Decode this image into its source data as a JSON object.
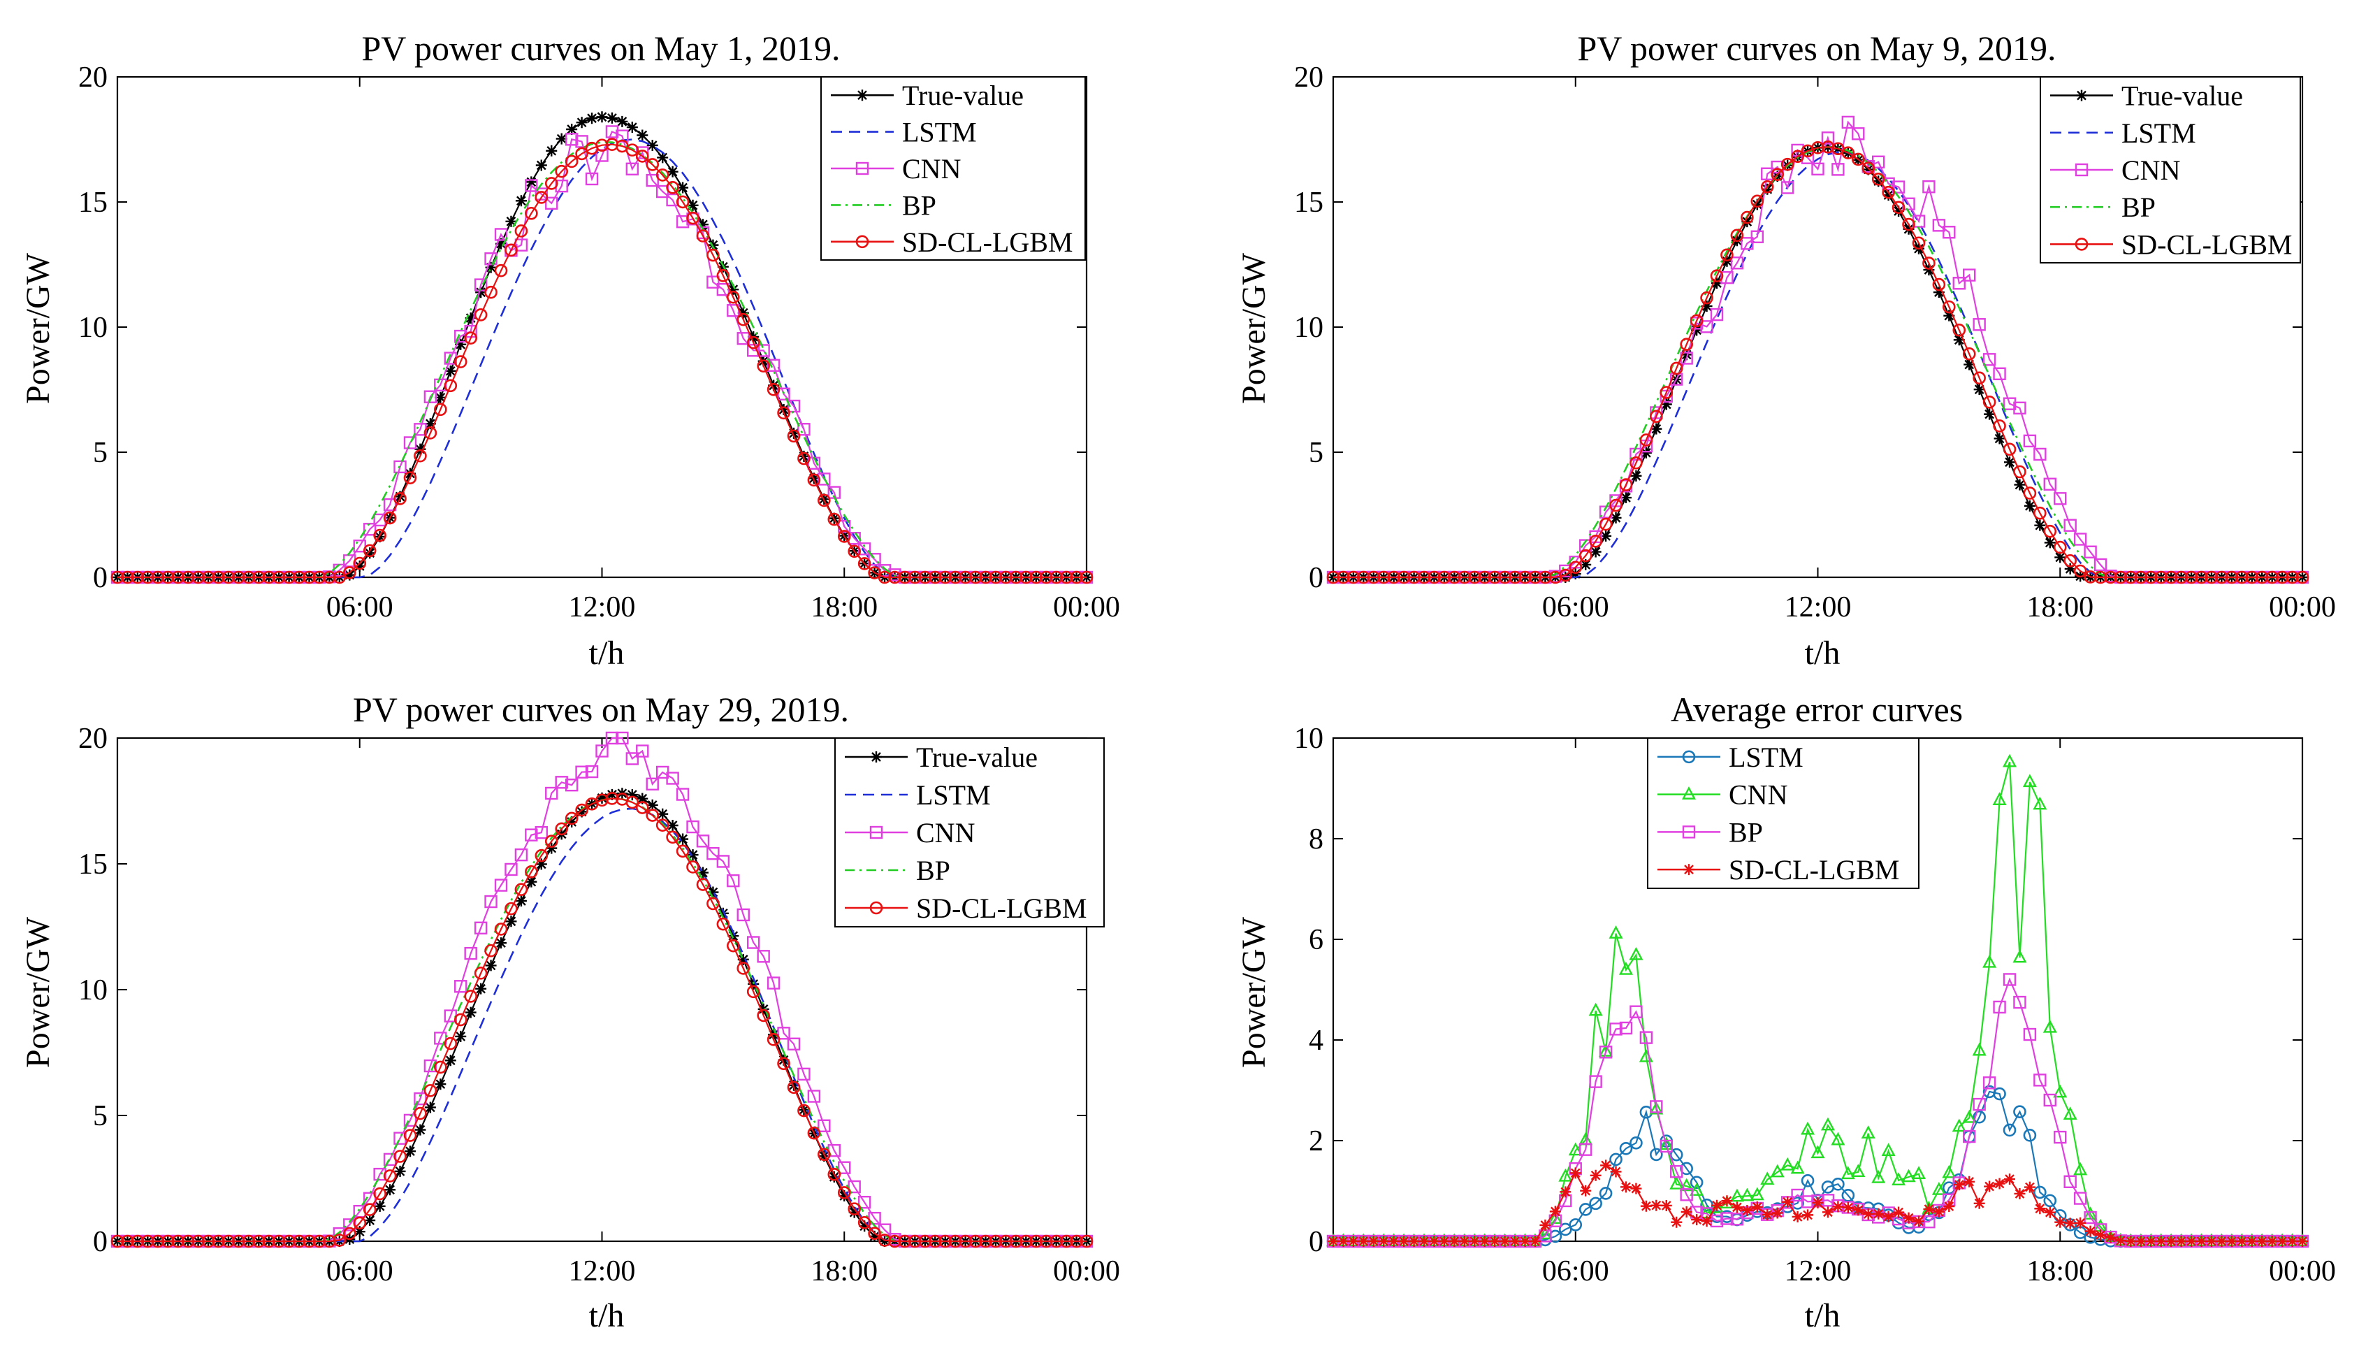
{
  "chart_data": [
    {
      "type": "line",
      "title": "PV power curves on May 1, 2019.",
      "xlabel": "t/h",
      "ylabel": "Power/GW",
      "ylim": [
        0,
        20
      ],
      "yticks": [
        "0",
        "5",
        "10",
        "15",
        "20"
      ],
      "x_ticks": [
        {
          "label": "06:00",
          "hour": 6
        },
        {
          "label": "12:00",
          "hour": 12
        },
        {
          "label": "18:00",
          "hour": 18
        },
        {
          "label": "00:00",
          "hour": 24
        }
      ],
      "legend_position": "top-right",
      "series": [
        {
          "name": "True-value",
          "color": "#000000",
          "style": "solid",
          "marker": "star",
          "sunrise": 5.6,
          "sunset": 19.0,
          "peak": 18.4,
          "peak_hour": 12.0
        },
        {
          "name": "LSTM",
          "color": "#1f2fd8",
          "style": "dashed",
          "marker": "none",
          "sunrise": 6.1,
          "sunset": 19.2,
          "peak": 17.5,
          "peak_hour": 12.7
        },
        {
          "name": "CNN",
          "color": "#e040e0",
          "style": "solid",
          "marker": "square",
          "sunrise": 5.2,
          "sunset": 19.4,
          "peak": 17.0,
          "peak_hour": 12.0,
          "noise": 1.2
        },
        {
          "name": "BP",
          "color": "#22cc22",
          "style": "dashdot",
          "marker": "none",
          "sunrise": 5.0,
          "sunset": 19.4,
          "peak": 17.4,
          "peak_hour": 12.1
        },
        {
          "name": "SD-CL-LGBM",
          "color": "#e81010",
          "style": "solid",
          "marker": "circle",
          "sunrise": 5.5,
          "sunset": 19.0,
          "peak": 17.3,
          "peak_hour": 12.2
        }
      ]
    },
    {
      "type": "line",
      "title": "PV power curves on May 9, 2019.",
      "xlabel": "t/h",
      "ylabel": "Power/GW",
      "ylim": [
        0,
        20
      ],
      "yticks": [
        "0",
        "5",
        "10",
        "15",
        "20"
      ],
      "x_ticks": [
        {
          "label": "06:00",
          "hour": 6
        },
        {
          "label": "12:00",
          "hour": 12
        },
        {
          "label": "18:00",
          "hour": 18
        },
        {
          "label": "00:00",
          "hour": 24
        }
      ],
      "legend_position": "top-right",
      "series": [
        {
          "name": "True-value",
          "color": "#000000",
          "style": "solid",
          "marker": "star",
          "sunrise": 5.8,
          "sunset": 18.6,
          "peak": 17.2,
          "peak_hour": 12.2
        },
        {
          "name": "LSTM",
          "color": "#1f2fd8",
          "style": "dashed",
          "marker": "none",
          "sunrise": 6.1,
          "sunset": 19.0,
          "peak": 17.0,
          "peak_hour": 12.6
        },
        {
          "name": "CNN",
          "color": "#e040e0",
          "style": "solid",
          "marker": "square",
          "sunrise": 5.4,
          "sunset": 19.4,
          "peak": 17.5,
          "peak_hour": 12.8,
          "noise": 1.3
        },
        {
          "name": "BP",
          "color": "#22cc22",
          "style": "dashdot",
          "marker": "none",
          "sunrise": 5.3,
          "sunset": 19.2,
          "peak": 17.2,
          "peak_hour": 12.3
        },
        {
          "name": "SD-CL-LGBM",
          "color": "#e81010",
          "style": "solid",
          "marker": "circle",
          "sunrise": 5.6,
          "sunset": 18.8,
          "peak": 17.2,
          "peak_hour": 12.2
        }
      ]
    },
    {
      "type": "line",
      "title": "PV power curves on May 29, 2019.",
      "xlabel": "t/h",
      "ylabel": "Power/GW",
      "ylim": [
        0,
        20
      ],
      "yticks": [
        "0",
        "5",
        "10",
        "15",
        "20"
      ],
      "x_ticks": [
        {
          "label": "06:00",
          "hour": 6
        },
        {
          "label": "12:00",
          "hour": 12
        },
        {
          "label": "18:00",
          "hour": 18
        },
        {
          "label": "00:00",
          "hour": 24
        }
      ],
      "legend_position": "top-right",
      "series": [
        {
          "name": "True-value",
          "color": "#000000",
          "style": "solid",
          "marker": "star",
          "sunrise": 5.6,
          "sunset": 19.0,
          "peak": 17.8,
          "peak_hour": 12.5
        },
        {
          "name": "LSTM",
          "color": "#1f2fd8",
          "style": "dashed",
          "marker": "none",
          "sunrise": 6.0,
          "sunset": 19.1,
          "peak": 17.2,
          "peak_hour": 12.7
        },
        {
          "name": "CNN",
          "color": "#e040e0",
          "style": "solid",
          "marker": "square",
          "sunrise": 5.2,
          "sunset": 19.4,
          "peak": 19.5,
          "peak_hour": 12.4,
          "noise": 0.8
        },
        {
          "name": "BP",
          "color": "#22cc22",
          "style": "dashdot",
          "marker": "none",
          "sunrise": 5.1,
          "sunset": 19.3,
          "peak": 17.6,
          "peak_hour": 12.3
        },
        {
          "name": "SD-CL-LGBM",
          "color": "#e81010",
          "style": "solid",
          "marker": "circle",
          "sunrise": 5.4,
          "sunset": 19.1,
          "peak": 17.6,
          "peak_hour": 12.3
        }
      ]
    },
    {
      "type": "line",
      "title": "Average error curves",
      "xlabel": "t/h",
      "ylabel": "Power/GW",
      "ylim": [
        0,
        10
      ],
      "yticks": [
        "0",
        "2",
        "4",
        "6",
        "8",
        "10"
      ],
      "x_ticks": [
        {
          "label": "06:00",
          "hour": 6
        },
        {
          "label": "12:00",
          "hour": 12
        },
        {
          "label": "18:00",
          "hour": 18
        },
        {
          "label": "00:00",
          "hour": 24
        }
      ],
      "legend_position": "top-left",
      "series": [
        {
          "name": "LSTM",
          "color": "#1a78b8",
          "style": "solid",
          "marker": "circle",
          "bumps": [
            [
              7.8,
              2.3,
              1.3
            ],
            [
              12.0,
              1.0,
              2.0
            ],
            [
              16.5,
              2.5,
              1.2
            ]
          ],
          "noise": 0.25
        },
        {
          "name": "CNN",
          "color": "#22dd22",
          "style": "solid",
          "marker": "triangle",
          "bumps": [
            [
              7.2,
              5.0,
              1.2
            ],
            [
              12.5,
              1.9,
              2.4
            ],
            [
              17.0,
              8.4,
              1.1
            ]
          ],
          "noise": 0.35
        },
        {
          "name": "BP",
          "color": "#e040e0",
          "style": "solid",
          "marker": "square",
          "bumps": [
            [
              7.3,
              4.2,
              1.2
            ],
            [
              12.0,
              0.9,
              2.2
            ],
            [
              16.9,
              4.6,
              1.2
            ]
          ],
          "noise": 0.2
        },
        {
          "name": "SD-CL-LGBM",
          "color": "#e81010",
          "style": "solid",
          "marker": "star",
          "bumps": [
            [
              6.5,
              1.2,
              1.3
            ],
            [
              11.0,
              0.7,
              3.5
            ],
            [
              16.5,
              1.0,
              1.8
            ]
          ],
          "noise": 0.3
        }
      ]
    }
  ]
}
